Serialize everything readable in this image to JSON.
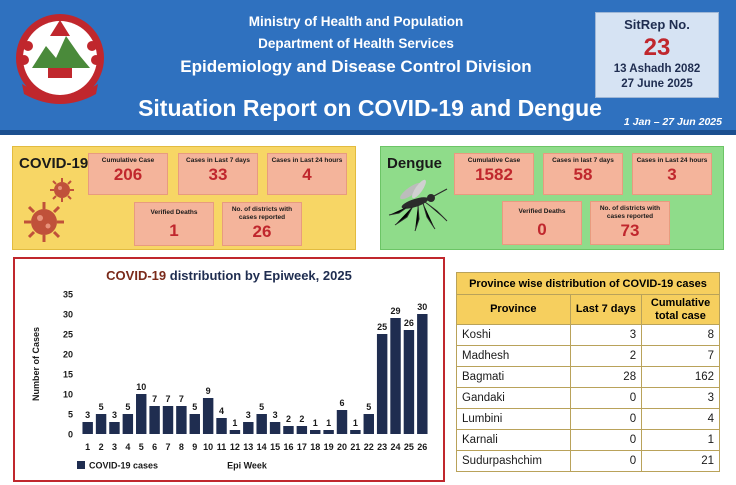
{
  "header": {
    "org_line1": "Ministry of Health and Population",
    "org_line2": "Department of Health Services",
    "org_line3": "Epidemiology and Disease Control Division",
    "report_title": "Situation Report on COVID-19 and Dengue",
    "date_range": "1 Jan – 27 Jun 2025",
    "emblem_icon": "nepal-emblem-icon",
    "colors": {
      "band": "#2f71bf",
      "accent_red": "#c0272d"
    }
  },
  "sitrep": {
    "label": "SitRep No.",
    "number": "23",
    "nepali_date": "13 Ashadh 2082",
    "english_date": "27 June 2025"
  },
  "covid": {
    "title": "COVID-19",
    "icon": "coronavirus-icon",
    "stats": {
      "cumulative": {
        "label": "Cumulative Case",
        "value": "206"
      },
      "last7": {
        "label": "Cases in Last 7 days",
        "value": "33"
      },
      "last24": {
        "label": "Cases in Last 24 hours",
        "value": "4"
      },
      "deaths": {
        "label": "Verified Deaths",
        "value": "1"
      },
      "districts": {
        "label": "No. of districts with cases reported",
        "value": "26"
      }
    }
  },
  "dengue": {
    "title": "Dengue",
    "icon": "mosquito-icon",
    "stats": {
      "cumulative": {
        "label": "Cumulative Case",
        "value": "1582"
      },
      "last7": {
        "label": "Cases in last 7 days",
        "value": "58"
      },
      "last24": {
        "label": "Cases in Last 24 hours",
        "value": "3"
      },
      "deaths": {
        "label": "Verified Deaths",
        "value": "0"
      },
      "districts": {
        "label": "No. of districts with cases reported",
        "value": "73"
      }
    }
  },
  "chart_data": {
    "type": "bar",
    "title_part1": "COVID-19",
    "title_part2": " distribution by Epiweek, 2025",
    "xlabel": "Epi Week",
    "ylabel": "Number of Cases",
    "ylim": [
      0,
      35
    ],
    "yticks": [
      0,
      5,
      10,
      15,
      20,
      25,
      30,
      35
    ],
    "grid": false,
    "legend": "bottom-left",
    "bar_color": "#1f2d50",
    "categories": [
      "1",
      "2",
      "3",
      "4",
      "5",
      "6",
      "7",
      "8",
      "9",
      "10",
      "11",
      "12",
      "13",
      "14",
      "15",
      "16",
      "17",
      "18",
      "19",
      "20",
      "21",
      "22",
      "23",
      "24",
      "25",
      "26"
    ],
    "series": [
      {
        "name": "COVID-19 cases",
        "values": [
          3,
          5,
          3,
          5,
          10,
          7,
          7,
          7,
          5,
          9,
          4,
          1,
          3,
          5,
          3,
          2,
          2,
          1,
          1,
          6,
          1,
          5,
          25,
          29,
          26,
          30
        ]
      }
    ]
  },
  "province_table": {
    "caption": "Province wise distribution of COVID-19 cases",
    "headers": {
      "province": "Province",
      "last7": "Last 7 days",
      "cumulative": "Cumulative total case"
    },
    "rows": [
      {
        "province": "Koshi",
        "last7": "3",
        "cumulative": "8"
      },
      {
        "province": "Madhesh",
        "last7": "2",
        "cumulative": "7"
      },
      {
        "province": "Bagmati",
        "last7": "28",
        "cumulative": "162"
      },
      {
        "province": "Gandaki",
        "last7": "0",
        "cumulative": "3"
      },
      {
        "province": "Lumbini",
        "last7": "0",
        "cumulative": "4"
      },
      {
        "province": "Karnali",
        "last7": "0",
        "cumulative": "1"
      },
      {
        "province": "Sudurpashchim",
        "last7": "0",
        "cumulative": "21"
      }
    ]
  }
}
